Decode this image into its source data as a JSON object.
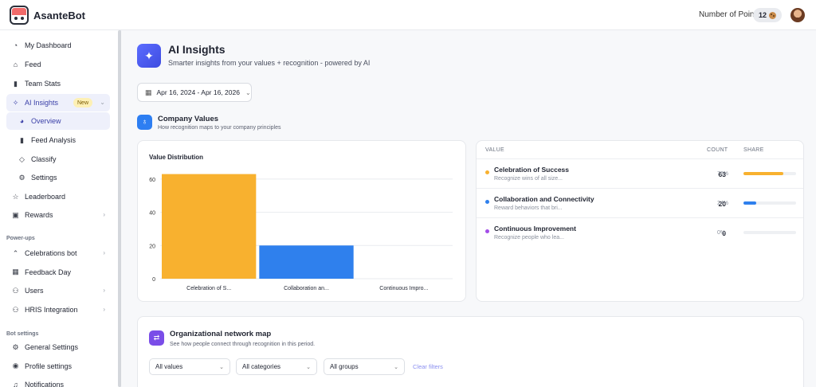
{
  "app": {
    "name": "AsanteBot"
  },
  "header": {
    "points_label": "Number of Points",
    "points_value": "12"
  },
  "sidebar": {
    "items": [
      {
        "label": "My Dashboard",
        "icon": "dashboard-icon"
      },
      {
        "label": "Feed",
        "icon": "home-icon"
      },
      {
        "label": "Team Stats",
        "icon": "bar-chart-icon"
      },
      {
        "label": "AI Insights",
        "icon": "sparkle-icon",
        "badge": "New",
        "active": true
      },
      {
        "label": "Overview",
        "icon": "pie-icon",
        "sub": true,
        "active": true
      },
      {
        "label": "Feed Analysis",
        "icon": "bar-chart-icon",
        "sub": true
      },
      {
        "label": "Classify",
        "icon": "tag-icon",
        "sub": true
      },
      {
        "label": "Settings",
        "icon": "gear-icon",
        "sub": true
      },
      {
        "label": "Leaderboard",
        "icon": "star-icon"
      },
      {
        "label": "Rewards",
        "icon": "gift-icon"
      }
    ],
    "powerups_label": "Power-ups",
    "powerups": [
      {
        "label": "Celebrations bot",
        "icon": "party-icon"
      },
      {
        "label": "Feedback Day",
        "icon": "calendar-icon"
      },
      {
        "label": "Users",
        "icon": "users-icon"
      },
      {
        "label": "HRIS Integration",
        "icon": "users-icon"
      }
    ],
    "botsettings_label": "Bot settings",
    "botsettings": [
      {
        "label": "General Settings",
        "icon": "gear-icon"
      },
      {
        "label": "Profile settings",
        "icon": "user-circle-icon"
      },
      {
        "label": "Notifications",
        "icon": "bell-icon"
      }
    ]
  },
  "page": {
    "title": "AI Insights",
    "subtitle": "Smarter insights from your values + recognition - powered by AI",
    "date_range": "Apr 16, 2024 - Apr 16, 2026"
  },
  "company_values": {
    "title": "Company Values",
    "subtitle": "How recognition maps to your company principles"
  },
  "chart_data": {
    "type": "bar",
    "title": "Value Distribution",
    "categories": [
      "Celebration of S...",
      "Collaboration an...",
      "Continuous Impro..."
    ],
    "values": [
      63,
      20,
      0
    ],
    "colors": [
      "#f8b12f",
      "#2f80ed",
      "#a34de8"
    ],
    "ylim": [
      0,
      70
    ],
    "yticks": [
      0,
      20,
      40,
      60
    ],
    "grid": true
  },
  "values_table": {
    "headers": {
      "value": "VALUE",
      "count": "COUNT",
      "share": "SHARE"
    },
    "rows": [
      {
        "name": "Celebration of Success",
        "desc": "Recognize wins of all size...",
        "count": "63",
        "pct": "76%",
        "share": 0.76,
        "color": "#f8b12f"
      },
      {
        "name": "Collaboration and Connectivity",
        "desc": "Reward behaviors that bri...",
        "count": "20",
        "pct": "24%",
        "share": 0.24,
        "color": "#2f80ed"
      },
      {
        "name": "Continuous Improvement",
        "desc": "Recognize people who lea...",
        "count": "0",
        "pct": "0%",
        "share": 0,
        "color": "#a34de8"
      }
    ]
  },
  "network": {
    "title": "Organizational network map",
    "subtitle": "See how people connect through recognition in this period.",
    "filters": [
      "All values",
      "All categories",
      "All groups"
    ],
    "clear_label": "Clear filters"
  }
}
